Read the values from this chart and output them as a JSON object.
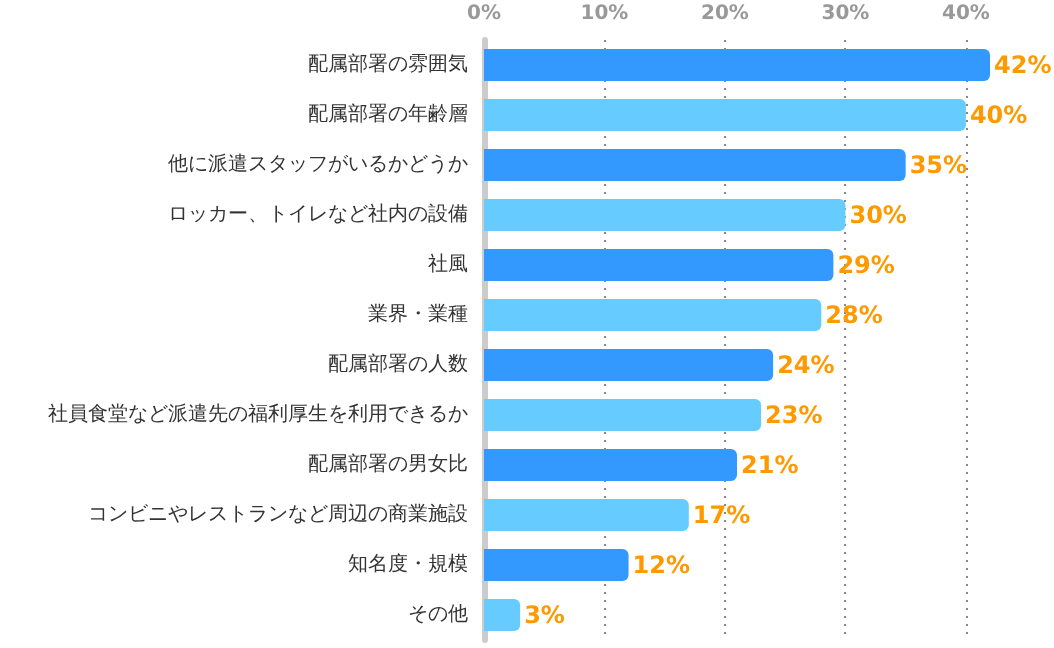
{
  "chart_data": {
    "type": "bar",
    "orientation": "horizontal",
    "categories": [
      "配属部署の雰囲気",
      "配属部署の年齢層",
      "他に派遣スタッフがいるかどうか",
      "ロッカー、トイレなど社内の設備",
      "社風",
      "業界・業種",
      "配属部署の人数",
      "社員食堂など派遣先の福利厚生を利用できるか",
      "配属部署の男女比",
      "コンビニやレストランなど周辺の商業施設",
      "知名度・規模",
      "その他"
    ],
    "values": [
      42,
      40,
      35,
      30,
      29,
      28,
      24,
      23,
      21,
      17,
      12,
      3
    ],
    "value_labels": [
      "42%",
      "40%",
      "35%",
      "30%",
      "29%",
      "28%",
      "24%",
      "23%",
      "21%",
      "17%",
      "12%",
      "3%"
    ],
    "colors": [
      "#3399ff",
      "#66ccff",
      "#3399ff",
      "#66ccff",
      "#3399ff",
      "#66ccff",
      "#3399ff",
      "#66ccff",
      "#3399ff",
      "#66ccff",
      "#3399ff",
      "#66ccff"
    ],
    "xlim": [
      0,
      42
    ],
    "xticks": [
      {
        "value": 0,
        "label": "0%"
      },
      {
        "value": 10,
        "label": "10%"
      },
      {
        "value": 20,
        "label": "20%"
      },
      {
        "value": 30,
        "label": "30%"
      },
      {
        "value": 40,
        "label": "40%"
      }
    ],
    "grid": "x"
  }
}
